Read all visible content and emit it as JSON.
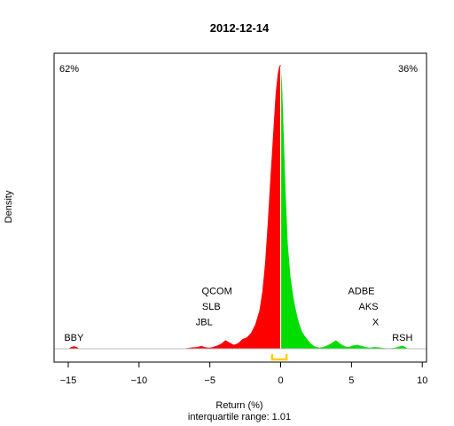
{
  "chart_data": {
    "type": "area",
    "title": "2012-12-14",
    "xlabel": "Return (%)",
    "subtitle": "interquartile range: 1.01",
    "ylabel": "Density",
    "xlim": [
      -16.0,
      10.3
    ],
    "ylim": [
      0,
      1
    ],
    "xticks": [
      -15,
      -10,
      -5,
      0,
      5,
      10
    ],
    "grid": false,
    "left_percent": "62%",
    "right_percent": "36%",
    "colors": {
      "negative": "#ff0000",
      "positive": "#00dd00",
      "iqr": "#ffcc00",
      "axis": "#000000",
      "baseline": "#bebebe"
    },
    "iqr": [
      -0.6,
      0.41
    ],
    "density": {
      "x": [
        -15.0,
        -14.8,
        -14.6,
        -14.4,
        -14.2,
        -7.0,
        -6.5,
        -6.2,
        -5.9,
        -5.6,
        -5.3,
        -5.0,
        -4.8,
        -4.5,
        -4.2,
        -3.9,
        -3.6,
        -3.3,
        -3.0,
        -2.7,
        -2.4,
        -2.1,
        -1.8,
        -1.5,
        -1.3,
        -1.1,
        -0.9,
        -0.7,
        -0.5,
        -0.35,
        -0.2,
        -0.1,
        0.0,
        0.1,
        0.2,
        0.35,
        0.5,
        0.7,
        0.9,
        1.1,
        1.3,
        1.5,
        1.8,
        2.1,
        2.4,
        2.7,
        3.0,
        3.3,
        3.6,
        3.9,
        4.2,
        4.5,
        4.8,
        5.1,
        5.4,
        5.7,
        6.0,
        6.3,
        6.6,
        6.9,
        7.2,
        7.5,
        7.8,
        8.1,
        8.4,
        8.6,
        8.8,
        9.0
      ],
      "y": [
        0,
        0.006,
        0.009,
        0.006,
        0,
        0,
        0.003,
        0.005,
        0.006,
        0.01,
        0.005,
        0.004,
        0.006,
        0.011,
        0.018,
        0.03,
        0.022,
        0.014,
        0.02,
        0.034,
        0.04,
        0.055,
        0.085,
        0.135,
        0.2,
        0.3,
        0.45,
        0.62,
        0.78,
        0.9,
        0.97,
        0.995,
        1.0,
        0.93,
        0.78,
        0.55,
        0.37,
        0.25,
        0.18,
        0.13,
        0.09,
        0.06,
        0.038,
        0.02,
        0.008,
        0.004,
        0.006,
        0.012,
        0.02,
        0.03,
        0.018,
        0.009,
        0.006,
        0.012,
        0.014,
        0.01,
        0.006,
        0.004,
        0.006,
        0.005,
        0.003,
        0.002,
        0.002,
        0.004,
        0.008,
        0.011,
        0.006,
        0
      ]
    },
    "ticker_labels": [
      {
        "text": "BBY",
        "x": -14.6,
        "row": 1
      },
      {
        "text": "QCOM",
        "x": -4.5,
        "row": 4
      },
      {
        "text": "SLB",
        "x": -4.9,
        "row": 3
      },
      {
        "text": "JBL",
        "x": -5.4,
        "row": 2
      },
      {
        "text": "ADBE",
        "x": 5.7,
        "row": 4
      },
      {
        "text": "AKS",
        "x": 6.2,
        "row": 3
      },
      {
        "text": "X",
        "x": 6.7,
        "row": 2
      },
      {
        "text": "RSH",
        "x": 8.6,
        "row": 1
      }
    ]
  }
}
